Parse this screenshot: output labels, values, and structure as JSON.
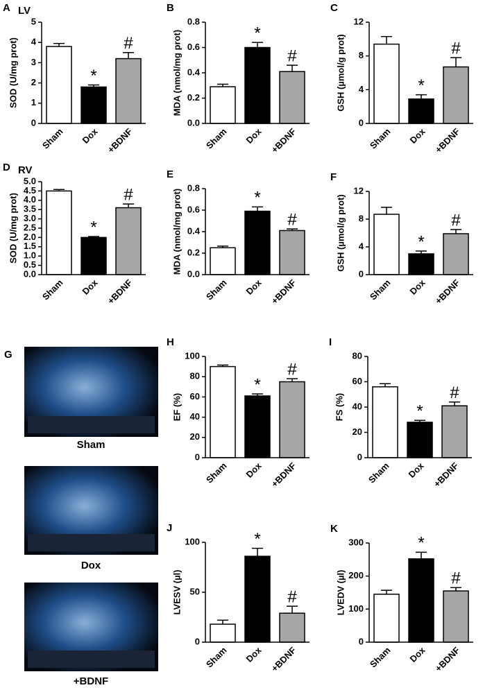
{
  "chart_data": [
    {
      "type": "bar",
      "panel": "A",
      "region": "LV",
      "ylabel": "SOD (U/mg prot)",
      "categories": [
        "Sham",
        "Dox",
        "+BDNF"
      ],
      "values": [
        3.8,
        1.8,
        3.2
      ],
      "errors": [
        0.15,
        0.1,
        0.3
      ],
      "annotations": [
        null,
        "*",
        "#"
      ],
      "colors": [
        "#ffffff",
        "#000000",
        "#a6a6a6"
      ],
      "ylim": [
        0,
        5
      ],
      "yticks": [
        0,
        1,
        2,
        3,
        4,
        5
      ]
    },
    {
      "type": "bar",
      "panel": "B",
      "ylabel": "MDA (nmol/mg prot)",
      "categories": [
        "Sham",
        "Dox",
        "+BDNF"
      ],
      "values": [
        0.29,
        0.6,
        0.41
      ],
      "errors": [
        0.02,
        0.04,
        0.05
      ],
      "annotations": [
        null,
        "*",
        "#"
      ],
      "colors": [
        "#ffffff",
        "#000000",
        "#a6a6a6"
      ],
      "ylim": [
        0,
        0.8
      ],
      "yticks": [
        {
          "value": 0,
          "label": "0.0"
        },
        0.2,
        0.4,
        0.6,
        0.8
      ]
    },
    {
      "type": "bar",
      "panel": "C",
      "ylabel": "GSH (µmol/g prot)",
      "categories": [
        "Sham",
        "Dox",
        "+BDNF"
      ],
      "values": [
        9.4,
        2.9,
        6.7
      ],
      "errors": [
        0.9,
        0.5,
        1.1
      ],
      "annotations": [
        null,
        "*",
        "#"
      ],
      "colors": [
        "#ffffff",
        "#000000",
        "#a6a6a6"
      ],
      "ylim": [
        0,
        12
      ],
      "yticks": [
        0,
        4,
        8,
        12
      ]
    },
    {
      "type": "bar",
      "panel": "D",
      "region": "RV",
      "ylabel": "SOD (U/mg prot)",
      "categories": [
        "Sham",
        "Dox",
        "+BDNF"
      ],
      "values": [
        4.5,
        2.0,
        3.6
      ],
      "errors": [
        0.08,
        0.05,
        0.2
      ],
      "annotations": [
        null,
        "*",
        "#"
      ],
      "colors": [
        "#ffffff",
        "#000000",
        "#a6a6a6"
      ],
      "ylim": [
        0,
        5
      ],
      "yticks": [
        {
          "value": 0,
          "label": "0.0"
        },
        {
          "value": 0.5,
          "label": "0.5"
        },
        {
          "value": 1,
          "label": "1.0"
        },
        {
          "value": 1.5,
          "label": "1.5"
        },
        {
          "value": 2,
          "label": "2.0"
        },
        {
          "value": 2.5,
          "label": "2.5"
        },
        {
          "value": 3,
          "label": "3.0"
        },
        {
          "value": 3.5,
          "label": "3.5"
        },
        {
          "value": 4,
          "label": "4.0"
        },
        {
          "value": 4.5,
          "label": "4.5"
        },
        {
          "value": 5,
          "label": "5.0"
        }
      ]
    },
    {
      "type": "bar",
      "panel": "E",
      "ylabel": "MDA (nmol/mg prot)",
      "categories": [
        "Sham",
        "Dox",
        "+BDNF"
      ],
      "values": [
        0.25,
        0.59,
        0.41
      ],
      "errors": [
        0.015,
        0.04,
        0.015
      ],
      "annotations": [
        null,
        "*",
        "#"
      ],
      "colors": [
        "#ffffff",
        "#000000",
        "#a6a6a6"
      ],
      "ylim": [
        0,
        0.8
      ],
      "yticks": [
        {
          "value": 0,
          "label": "0.0"
        },
        0.2,
        0.4,
        0.6,
        0.8
      ]
    },
    {
      "type": "bar",
      "panel": "F",
      "ylabel": "GSH (µmol/g prot)",
      "categories": [
        "Sham",
        "Dox",
        "+BDNF"
      ],
      "values": [
        8.7,
        3.0,
        5.9
      ],
      "errors": [
        1.0,
        0.4,
        0.6
      ],
      "annotations": [
        null,
        "*",
        "#"
      ],
      "colors": [
        "#ffffff",
        "#000000",
        "#a6a6a6"
      ],
      "ylim": [
        0,
        12
      ],
      "yticks": [
        0,
        4,
        8,
        12
      ]
    },
    {
      "type": "bar",
      "panel": "H",
      "ylabel": "EF (%)",
      "categories": [
        "Sham",
        "Dox",
        "+BDNF"
      ],
      "values": [
        90,
        61,
        75
      ],
      "errors": [
        1.5,
        2,
        3
      ],
      "annotations": [
        null,
        "*",
        "#"
      ],
      "colors": [
        "#ffffff",
        "#000000",
        "#a6a6a6"
      ],
      "ylim": [
        0,
        100
      ],
      "yticks": [
        0,
        20,
        40,
        60,
        80,
        100
      ]
    },
    {
      "type": "bar",
      "panel": "I",
      "ylabel": "FS (%)",
      "categories": [
        "Sham",
        "Dox",
        "+BDNF"
      ],
      "values": [
        56,
        28,
        41
      ],
      "errors": [
        2.5,
        1.5,
        3
      ],
      "annotations": [
        null,
        "*",
        "#"
      ],
      "colors": [
        "#ffffff",
        "#000000",
        "#a6a6a6"
      ],
      "ylim": [
        0,
        80
      ],
      "yticks": [
        0,
        20,
        40,
        60,
        80
      ]
    },
    {
      "type": "bar",
      "panel": "J",
      "ylabel": "LVESV (µl)",
      "categories": [
        "Sham",
        "Dox",
        "+BDNF"
      ],
      "values": [
        18,
        86,
        29
      ],
      "errors": [
        4,
        8,
        7
      ],
      "annotations": [
        null,
        "*",
        "#"
      ],
      "colors": [
        "#ffffff",
        "#000000",
        "#a6a6a6"
      ],
      "ylim": [
        0,
        100
      ],
      "yticks": [
        0,
        50,
        100
      ]
    },
    {
      "type": "bar",
      "panel": "K",
      "ylabel": "LVEDV (µl)",
      "categories": [
        "Sham",
        "Dox",
        "+BDNF"
      ],
      "values": [
        145,
        252,
        155
      ],
      "errors": [
        12,
        20,
        10
      ],
      "annotations": [
        null,
        "*",
        "#"
      ],
      "colors": [
        "#ffffff",
        "#000000",
        "#a6a6a6"
      ],
      "ylim": [
        0,
        300
      ],
      "yticks": [
        0,
        100,
        200,
        300
      ]
    }
  ],
  "images": {
    "panel": "G",
    "captions": [
      "Sham",
      "Dox",
      "+BDNF"
    ]
  }
}
